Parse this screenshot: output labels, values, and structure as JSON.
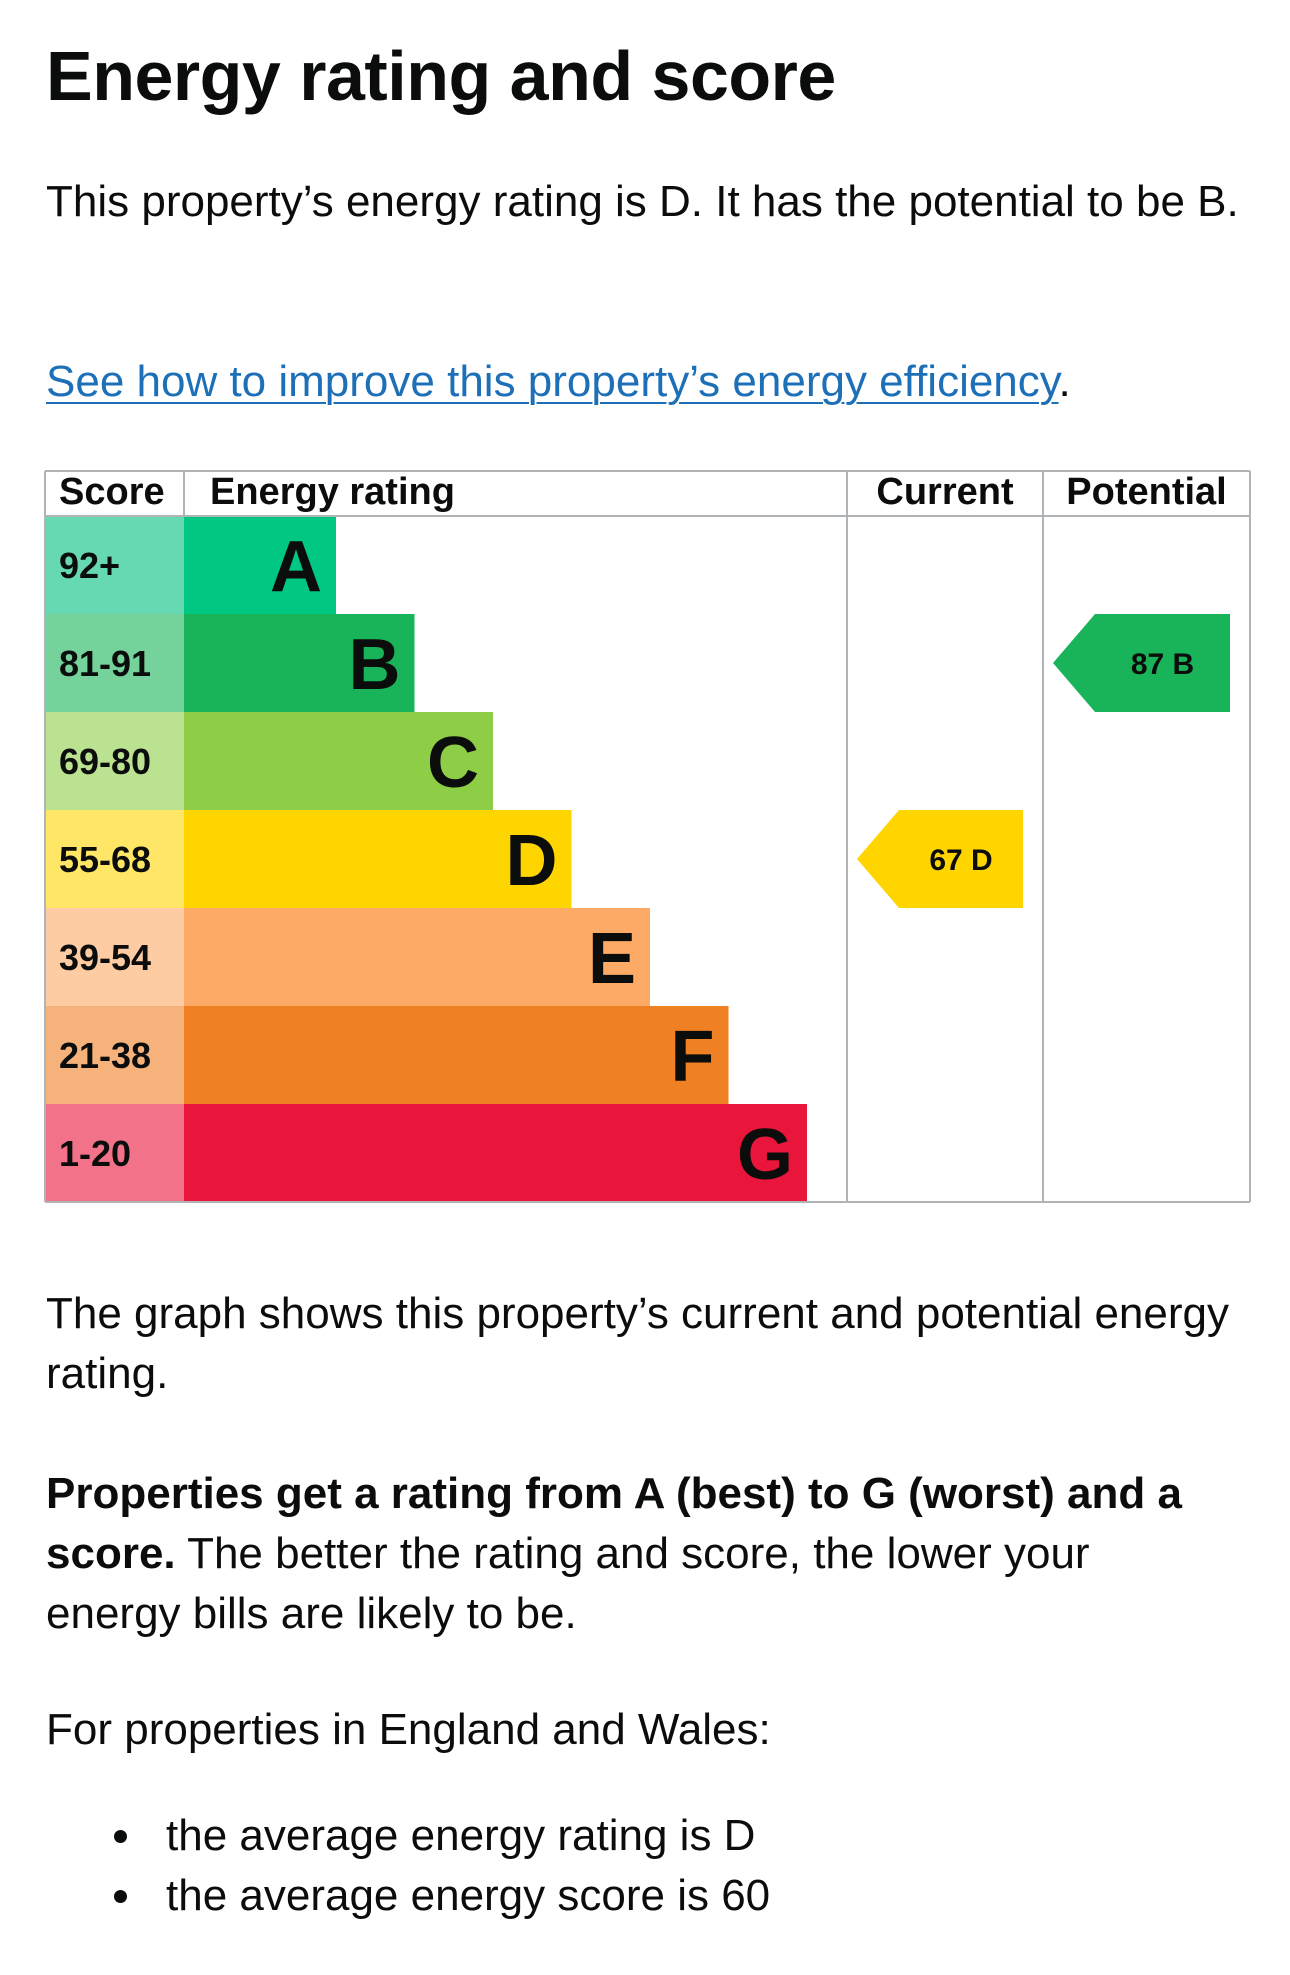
{
  "page": {
    "title": "Energy rating and score",
    "intro": "This property’s energy rating is D. It has the potential to be B.",
    "improve_link": "See how to improve this property’s energy efficiency",
    "improve_link_suffix": ".",
    "graph_caption": "The graph shows this property’s current and potential energy rating.",
    "rating_bold": "Properties get a rating from A (best) to G (worst) and a score.",
    "rating_rest": " The better the rating and score, the lower your energy bills are likely to be.",
    "region_intro": "For properties in England and Wales:",
    "averages": [
      "the average energy rating is D",
      "the average energy score is 60"
    ]
  },
  "chart_data": {
    "type": "bar",
    "headers": {
      "score": "Score",
      "rating": "Energy rating",
      "current": "Current",
      "potential": "Potential"
    },
    "bands": [
      {
        "letter": "A",
        "score": "92+",
        "color": "#00c781",
        "score_bg": "#66d9b3"
      },
      {
        "letter": "B",
        "score": "81-91",
        "color": "#19b459",
        "score_bg": "#75d29b"
      },
      {
        "letter": "C",
        "score": "69-80",
        "color": "#8dce46",
        "score_bg": "#bbe290"
      },
      {
        "letter": "D",
        "score": "55-68",
        "color": "#ffd500",
        "score_bg": "#ffe666"
      },
      {
        "letter": "E",
        "score": "39-54",
        "color": "#fcaa65",
        "score_bg": "#fdcca3"
      },
      {
        "letter": "F",
        "score": "21-38",
        "color": "#ef8023",
        "score_bg": "#f5b37b"
      },
      {
        "letter": "G",
        "score": "1-20",
        "color": "#e9153b",
        "score_bg": "#f27389"
      }
    ],
    "current": {
      "score": 67,
      "letter": "D",
      "label": "67  D"
    },
    "potential": {
      "score": 87,
      "letter": "B",
      "label": "87  B"
    },
    "colors": {
      "grid": "#b1b4b6",
      "text": "#0b0c0c",
      "link": "#1d70b8"
    }
  }
}
